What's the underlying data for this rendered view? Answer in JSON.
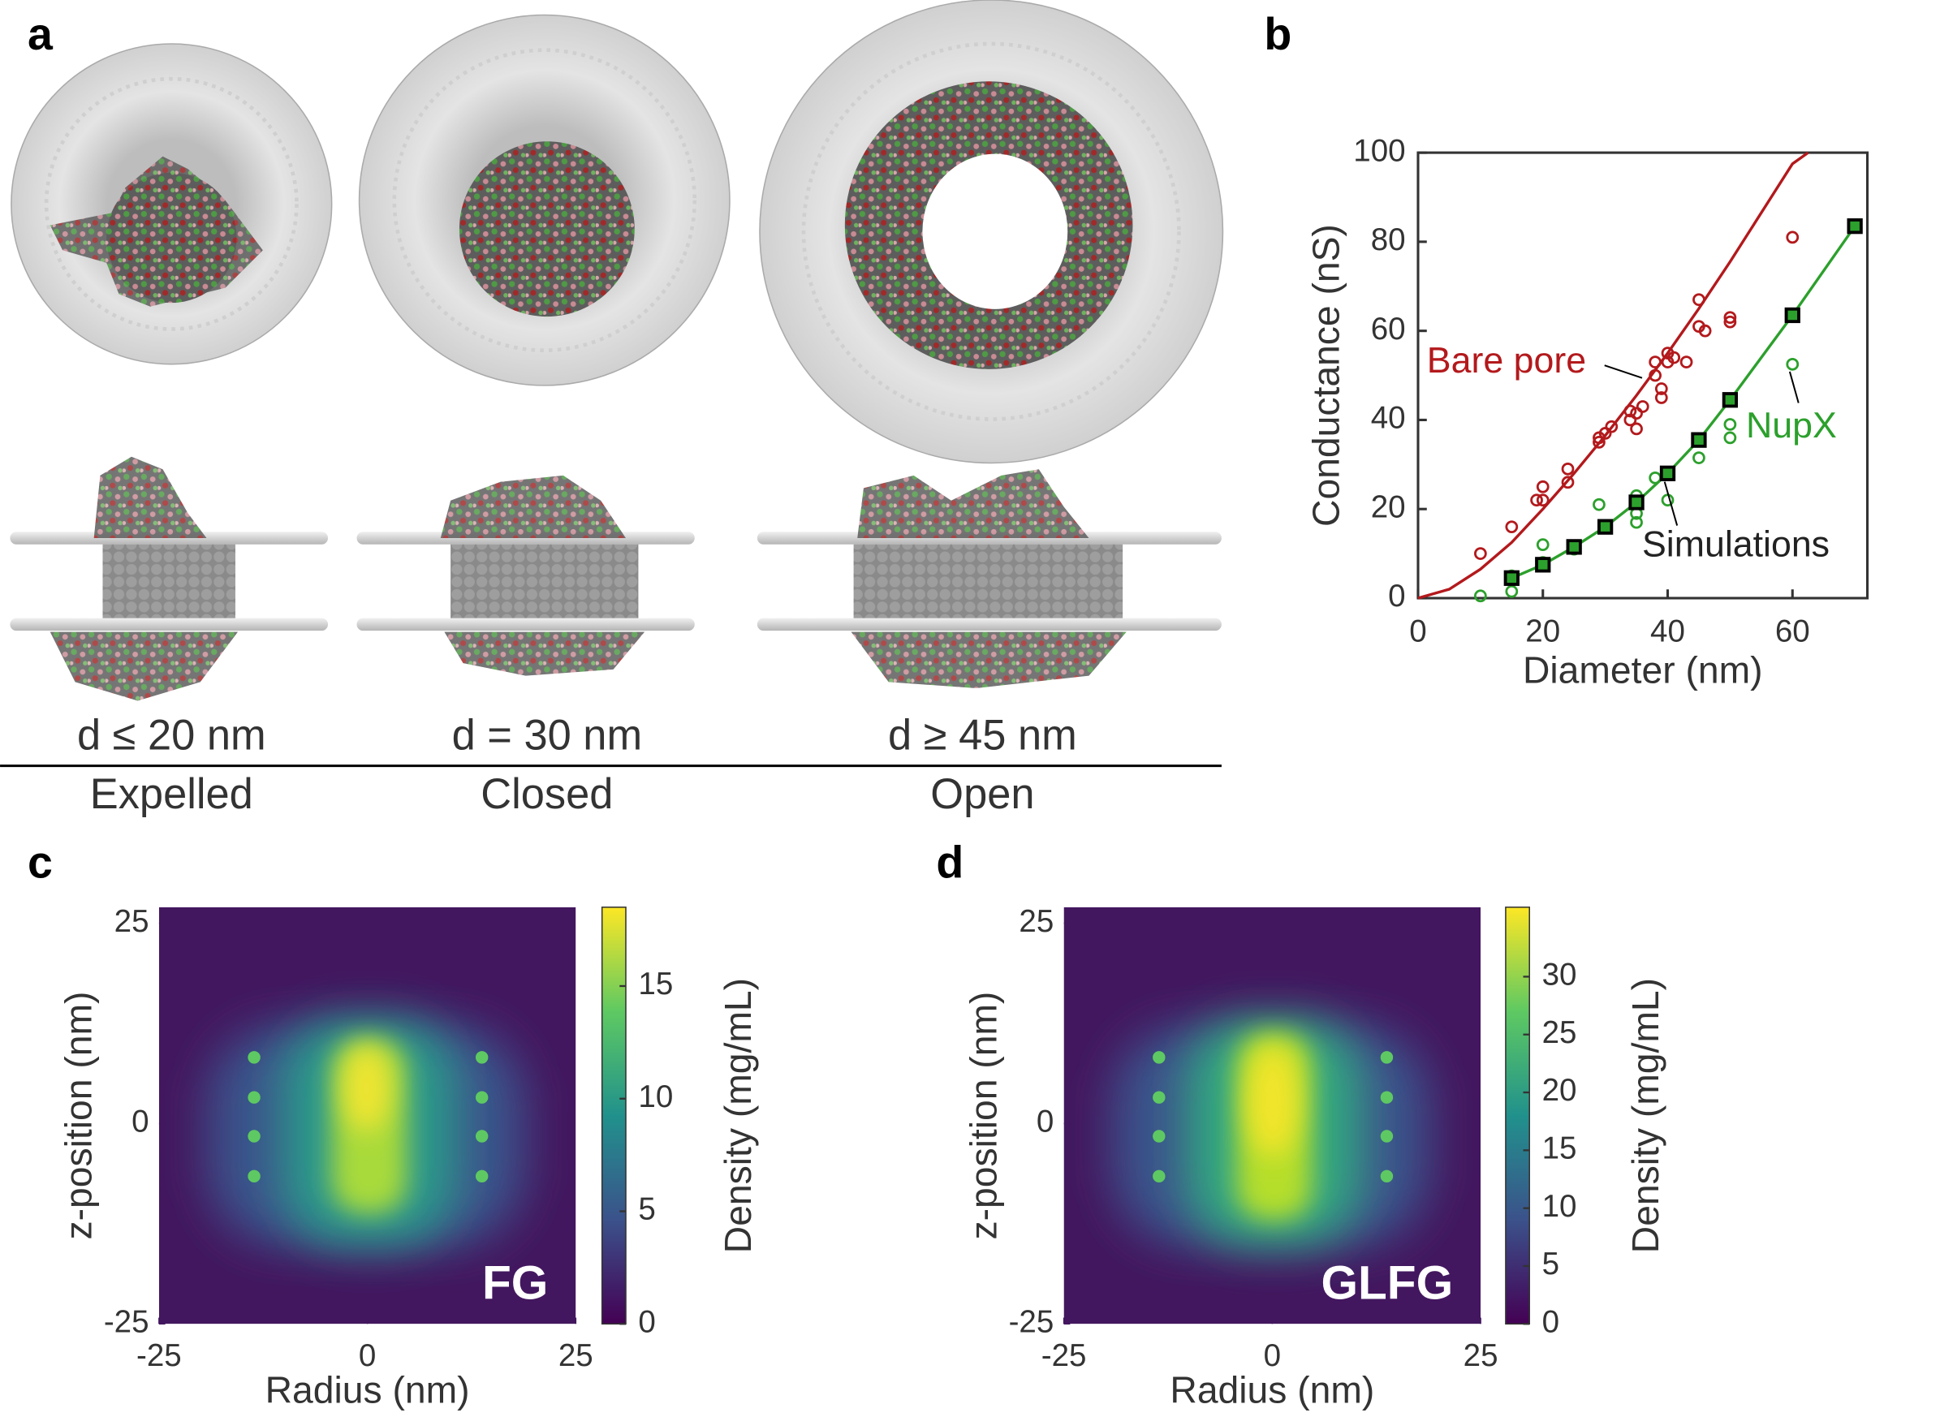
{
  "panel_a": {
    "label": "a",
    "columns": [
      {
        "condition": "d ≤ 20 nm",
        "state": "Expelled"
      },
      {
        "condition": "d = 30 nm",
        "state": "Closed"
      },
      {
        "condition": "d ≥ 45 nm",
        "state": "Open"
      }
    ]
  },
  "chart_data": [
    {
      "type": "scatter",
      "panel": "b",
      "xlabel": "Diameter (nm)",
      "ylabel": "Conductance (nS)",
      "xlim": [
        0,
        72
      ],
      "ylim": [
        0,
        100
      ],
      "xticks": [
        0,
        20,
        40,
        60
      ],
      "yticks": [
        0,
        20,
        40,
        60,
        80,
        100
      ],
      "series": [
        {
          "name": "Bare pore",
          "color": "#b3191c",
          "marker": "circle",
          "x": [
            10,
            15,
            19,
            20,
            20,
            24,
            24,
            29,
            29,
            30,
            31,
            34,
            34,
            35,
            35,
            36,
            38,
            38,
            39,
            39,
            40,
            40,
            41,
            43,
            45,
            45,
            46,
            50,
            50,
            60
          ],
          "values": [
            10,
            16,
            22,
            25,
            22,
            26,
            29,
            35,
            36,
            37,
            38.5,
            40,
            42,
            41.5,
            38,
            43,
            50,
            53,
            47,
            45,
            53,
            55,
            54,
            53,
            61,
            67,
            60,
            62,
            63,
            81
          ],
          "fit_x": [
            0,
            5,
            10,
            15,
            20,
            25,
            30,
            35,
            40,
            45,
            50,
            55,
            60,
            62.5
          ],
          "fit_values": [
            0,
            2,
            6.5,
            12.5,
            20,
            28,
            36.5,
            45.5,
            55,
            65,
            75.5,
            86.5,
            97.5,
            100
          ]
        },
        {
          "name": "NupX",
          "color": "#2ca02c",
          "marker": "circle",
          "x": [
            10,
            15,
            15,
            20,
            20,
            25,
            29,
            30,
            35,
            35,
            35,
            38,
            40,
            45,
            50,
            50,
            60
          ],
          "values": [
            0.5,
            1.5,
            5,
            8,
            12,
            11,
            21,
            16,
            17,
            19,
            23,
            27,
            22,
            31.5,
            36,
            39,
            52.5
          ]
        },
        {
          "name": "Simulations",
          "color": "#2ca02c",
          "edge_color": "#000000",
          "marker": "square",
          "line": true,
          "x": [
            15,
            20,
            25,
            30,
            35,
            40,
            45,
            50,
            60,
            70
          ],
          "values": [
            4.5,
            7.5,
            11.5,
            16,
            21.5,
            28,
            35.5,
            44.5,
            63.5,
            83.5
          ]
        }
      ]
    },
    {
      "type": "heatmap",
      "panel": "c",
      "label": "FG",
      "xlabel": "Radius (nm)",
      "ylabel": "z-position (nm)",
      "colorbar_label": "Density (mg/mL)",
      "colormap": "viridis",
      "xlim": [
        -25,
        25
      ],
      "ylim": [
        -25,
        27
      ],
      "xticks": [
        -25,
        0,
        25
      ],
      "yticks": [
        -25,
        0,
        25
      ],
      "clim": [
        0,
        18.5
      ],
      "cticks": [
        0,
        5,
        10,
        15
      ]
    },
    {
      "type": "heatmap",
      "panel": "d",
      "label": "GLFG",
      "xlabel": "Radius (nm)",
      "ylabel": "z-position (nm)",
      "colorbar_label": "Density (mg/mL)",
      "colormap": "viridis",
      "xlim": [
        -25,
        25
      ],
      "ylim": [
        -25,
        27
      ],
      "xticks": [
        -25,
        0,
        25
      ],
      "yticks": [
        -25,
        0,
        25
      ],
      "clim": [
        0,
        36
      ],
      "cticks": [
        0,
        5,
        10,
        15,
        20,
        25,
        30
      ]
    }
  ]
}
